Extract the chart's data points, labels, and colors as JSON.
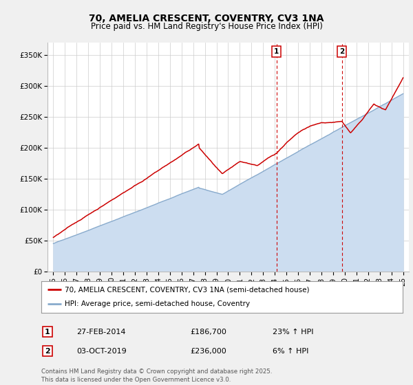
{
  "title_line1": "70, AMELIA CRESCENT, COVENTRY, CV3 1NA",
  "title_line2": "Price paid vs. HM Land Registry's House Price Index (HPI)",
  "legend_label1": "70, AMELIA CRESCENT, COVENTRY, CV3 1NA (semi-detached house)",
  "legend_label2": "HPI: Average price, semi-detached house, Coventry",
  "annotation1": {
    "num": "1",
    "date": "27-FEB-2014",
    "price": "£186,700",
    "pct": "23% ↑ HPI"
  },
  "annotation2": {
    "num": "2",
    "date": "03-OCT-2019",
    "price": "£236,000",
    "pct": "6% ↑ HPI"
  },
  "footnote": "Contains HM Land Registry data © Crown copyright and database right 2025.\nThis data is licensed under the Open Government Licence v3.0.",
  "line1_color": "#cc0000",
  "line2_color": "#88aacc",
  "line2_fill_color": "#ccddf0",
  "vline1_x": 2014.15,
  "vline2_x": 2019.75,
  "vline_color": "#cc0000",
  "ylim": [
    0,
    370000
  ],
  "xlim": [
    1994.5,
    2025.5
  ],
  "yticks": [
    0,
    50000,
    100000,
    150000,
    200000,
    250000,
    300000,
    350000
  ],
  "ytick_labels": [
    "£0",
    "£50K",
    "£100K",
    "£150K",
    "£200K",
    "£250K",
    "£300K",
    "£350K"
  ],
  "xticks": [
    1995,
    1996,
    1997,
    1998,
    1999,
    2000,
    2001,
    2002,
    2003,
    2004,
    2005,
    2006,
    2007,
    2008,
    2009,
    2010,
    2011,
    2012,
    2013,
    2014,
    2015,
    2016,
    2017,
    2018,
    2019,
    2020,
    2021,
    2022,
    2023,
    2024,
    2025
  ],
  "bg_color": "#f0f0f0",
  "plot_bg_color": "#ffffff"
}
